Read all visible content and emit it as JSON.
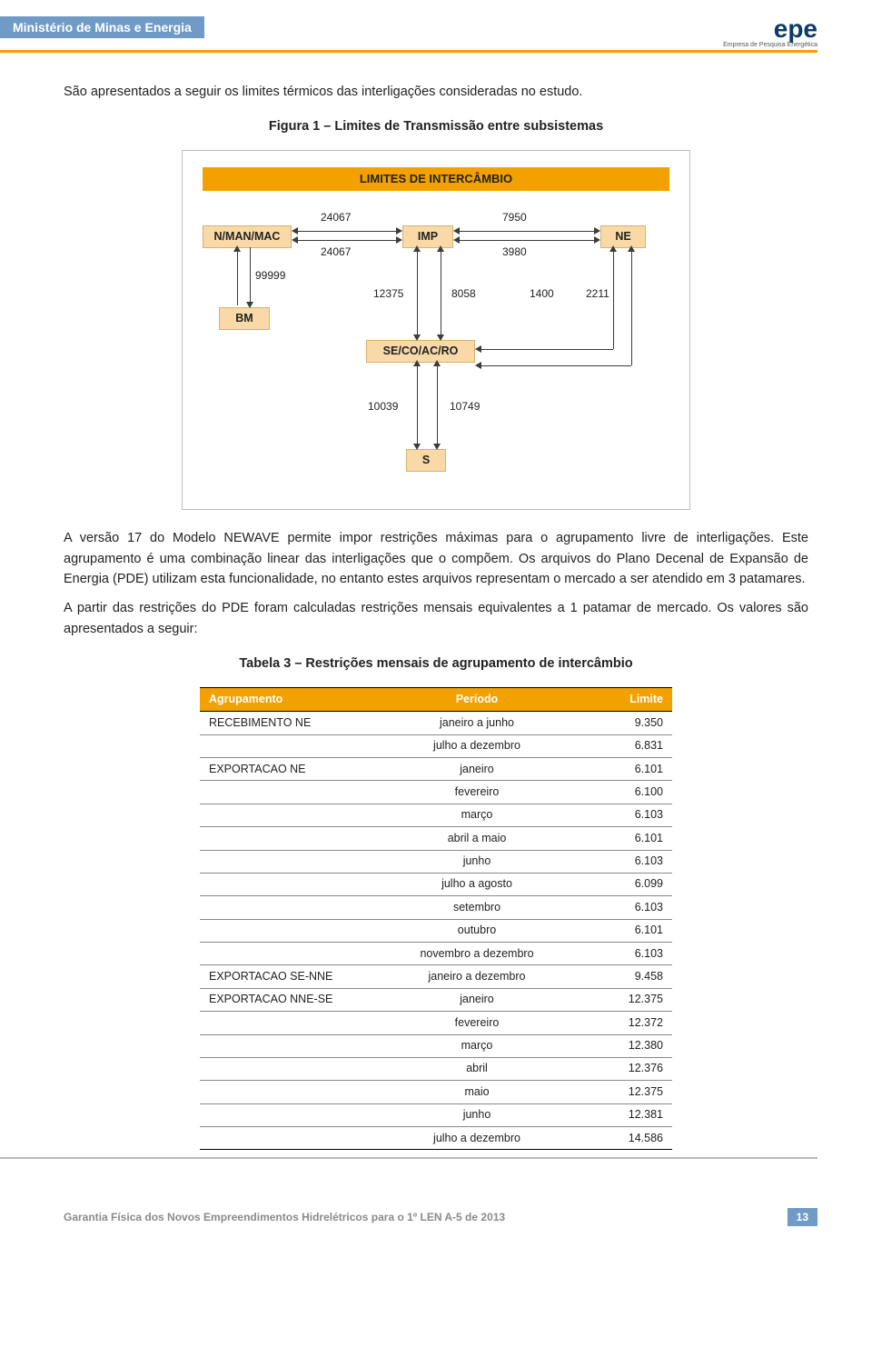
{
  "header": {
    "ministry": "Ministério de Minas e Energia",
    "logo_main": "epe",
    "logo_sub": "Empresa de Pesquisa Energética"
  },
  "colors": {
    "band_bg": "#6f9bc6",
    "band_text": "#ffffff",
    "accent": "#f2a100",
    "node_bg": "#f9d9a7",
    "node_border": "#d8b26a",
    "text": "#222222"
  },
  "body": {
    "p1": "São apresentados a seguir os limites térmicos das interligações consideradas no estudo.",
    "fig_title": "Figura 1 – Limites de Transmissão entre subsistemas",
    "p2": "A versão 17 do Modelo NEWAVE permite impor restrições máximas para o agrupamento livre de interligações. Este agrupamento é uma combinação linear das interligações que o compõem. Os arquivos do Plano Decenal de Expansão de Energia (PDE) utilizam esta funcionalidade, no entanto estes arquivos representam o mercado a ser atendido em 3 patamares.",
    "p3": "A partir das restrições do PDE foram calculadas restrições mensais equivalentes a 1 patamar de mercado. Os valores são apresentados a seguir:",
    "table_title": "Tabela 3 – Restrições mensais de agrupamento de intercâmbio"
  },
  "diagram": {
    "title": "LIMITES DE INTERCÂMBIO",
    "nodes": {
      "nmanmac": "N/MAN/MAC",
      "imp": "IMP",
      "ne": "NE",
      "bm": "BM",
      "secoacro": "SE/CO/AC/RO",
      "s": "S"
    },
    "values": {
      "nman_imp_top": "24067",
      "nman_imp_bot": "24067",
      "imp_ne_top": "7950",
      "imp_ne_bot": "3980",
      "nman_bm": "99999",
      "imp_se_left": "12375",
      "imp_se_right": "8058",
      "ne_se_left": "1400",
      "ne_se_right": "2211",
      "se_s_left": "10039",
      "se_s_right": "10749"
    }
  },
  "table": {
    "columns": [
      "Agrupamento",
      "Período",
      "Limite"
    ],
    "rows": [
      [
        "RECEBIMENTO NE",
        "janeiro a junho",
        "9.350"
      ],
      [
        "",
        "julho a dezembro",
        "6.831"
      ],
      [
        "EXPORTACAO NE",
        "janeiro",
        "6.101"
      ],
      [
        "",
        "fevereiro",
        "6.100"
      ],
      [
        "",
        "março",
        "6.103"
      ],
      [
        "",
        "abril a maio",
        "6.101"
      ],
      [
        "",
        "junho",
        "6.103"
      ],
      [
        "",
        "julho a agosto",
        "6.099"
      ],
      [
        "",
        "setembro",
        "6.103"
      ],
      [
        "",
        "outubro",
        "6.101"
      ],
      [
        "",
        "novembro a dezembro",
        "6.103"
      ],
      [
        "EXPORTACAO SE-NNE",
        "janeiro a dezembro",
        "9.458"
      ],
      [
        "EXPORTACAO NNE-SE",
        "janeiro",
        "12.375"
      ],
      [
        "",
        "fevereiro",
        "12.372"
      ],
      [
        "",
        "março",
        "12.380"
      ],
      [
        "",
        "abril",
        "12.376"
      ],
      [
        "",
        "maio",
        "12.375"
      ],
      [
        "",
        "junho",
        "12.381"
      ],
      [
        "",
        "julho a dezembro",
        "14.586"
      ]
    ]
  },
  "footer": {
    "text": "Garantia Física dos Novos Empreendimentos Hidrelétricos para o 1º LEN A-5 de 2013",
    "page": "13"
  }
}
